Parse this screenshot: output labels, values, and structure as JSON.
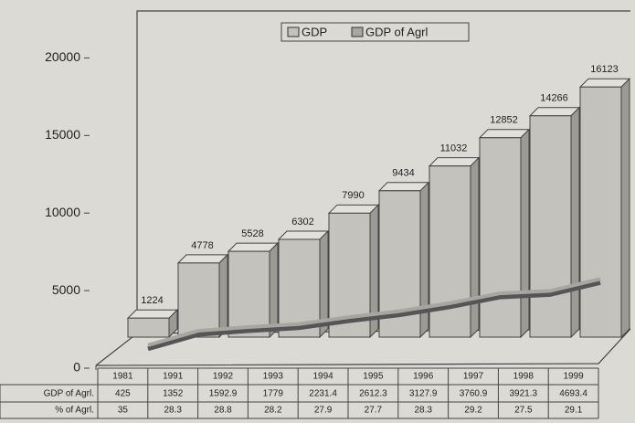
{
  "chart_data": {
    "type": "bar3d",
    "categories": [
      "1981",
      "1991",
      "1992",
      "1993",
      "1994",
      "1995",
      "1996",
      "1997",
      "1998",
      "1999"
    ],
    "series": [
      {
        "name": "GDP",
        "color": "#c4c2bd",
        "values": [
          1224,
          4778,
          5528,
          6302,
          7990,
          9434,
          11032,
          12852,
          14266,
          16123
        ]
      },
      {
        "name": "GDP of Agrl",
        "color": "#a8a6a0",
        "values": [
          425,
          1352,
          1592.9,
          1779,
          2231.4,
          2612.3,
          3127.9,
          3760.9,
          3921.3,
          4693.4
        ]
      }
    ],
    "table_row_labels": [
      "GDP of Agrl.",
      "% of Agrl."
    ],
    "share_values": [
      35,
      28.3,
      28.8,
      28.2,
      27.9,
      27.7,
      28.3,
      29.2,
      27.5,
      29.1
    ],
    "ylim": [
      0,
      20000
    ],
    "yticks": [
      0,
      5000,
      10000,
      15000,
      20000
    ]
  }
}
